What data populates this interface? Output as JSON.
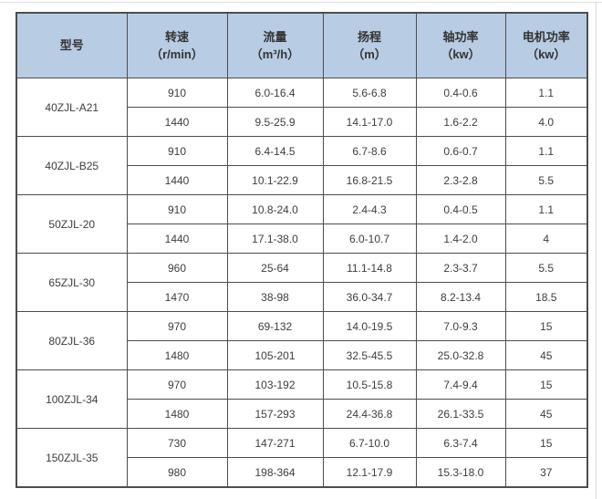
{
  "colors": {
    "header_bg": "#b8cce4",
    "grid_border": "#4d4d4d",
    "text": "#3d3d3d",
    "page_edge": "#d9d9d9"
  },
  "table": {
    "columns": [
      {
        "key": "model",
        "title": "型号",
        "unit": ""
      },
      {
        "key": "speed",
        "title": "转速",
        "unit": "（r/min）"
      },
      {
        "key": "flow",
        "title": "流量",
        "unit": "（m³/h）"
      },
      {
        "key": "head",
        "title": "扬程",
        "unit": "（m）"
      },
      {
        "key": "shaft-power",
        "title": "轴功率",
        "unit": "（kw）"
      },
      {
        "key": "motor-power",
        "title": "电机功率",
        "unit": "（kw）"
      }
    ],
    "groups": [
      {
        "model": "40ZJL-A21",
        "rows": [
          [
            "910",
            "6.0-16.4",
            "5.6-6.8",
            "0.4-0.6",
            "1.1"
          ],
          [
            "1440",
            "9.5-25.9",
            "14.1-17.0",
            "1.6-2.2",
            "4.0"
          ]
        ]
      },
      {
        "model": "40ZJL-B25",
        "rows": [
          [
            "910",
            "6.4-14.5",
            "6.7-8.6",
            "0.6-0.7",
            "1.1"
          ],
          [
            "1440",
            "10.1-22.9",
            "16.8-21.5",
            "2.3-2.8",
            "5.5"
          ]
        ]
      },
      {
        "model": "50ZJL-20",
        "rows": [
          [
            "910",
            "10.8-24.0",
            "2.4-4.3",
            "0.4-0.5",
            "1.1"
          ],
          [
            "1440",
            "17.1-38.0",
            "6.0-10.7",
            "1.4-2.0",
            "4"
          ]
        ]
      },
      {
        "model": "65ZJL-30",
        "rows": [
          [
            "960",
            "25-64",
            "11.1-14.8",
            "2.3-3.7",
            "5.5"
          ],
          [
            "1470",
            "38-98",
            "36.0-34.7",
            "8.2-13.4",
            "18.5"
          ]
        ]
      },
      {
        "model": "80ZJL-36",
        "rows": [
          [
            "970",
            "69-132",
            "14.0-19.5",
            "7.0-9.3",
            "15"
          ],
          [
            "1480",
            "105-201",
            "32.5-45.5",
            "25.0-32.8",
            "45"
          ]
        ]
      },
      {
        "model": "100ZJL-34",
        "rows": [
          [
            "970",
            "103-192",
            "10.5-15.8",
            "7.4-9.4",
            "15"
          ],
          [
            "1480",
            "157-293",
            "24.4-36.8",
            "26.1-33.5",
            "45"
          ]
        ]
      },
      {
        "model": "150ZJL-35",
        "rows": [
          [
            "730",
            "147-271",
            "6.7-10.0",
            "6.3-7.4",
            "15"
          ],
          [
            "980",
            "198-364",
            "12.1-17.9",
            "15.3-18.0",
            "37"
          ]
        ]
      }
    ]
  }
}
